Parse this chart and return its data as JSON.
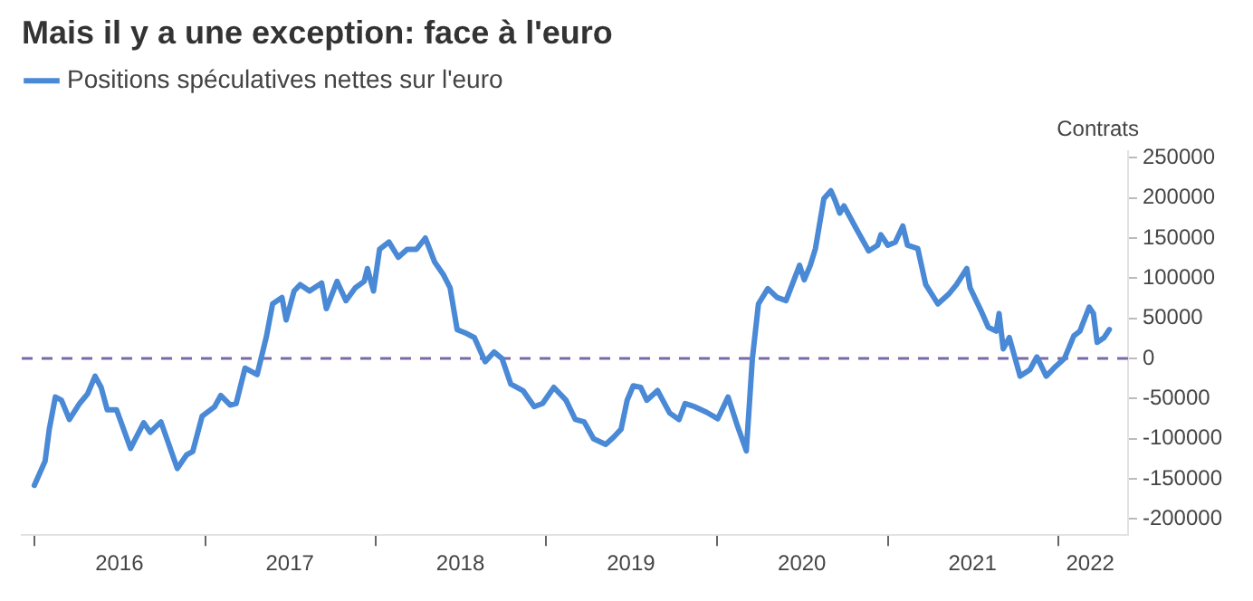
{
  "chart_data": {
    "type": "line",
    "title": "Mais il y a une exception: face à l'euro",
    "ylabel": "Contrats",
    "x": [
      "2016-01-01",
      "2016-01-24",
      "2016-02-02",
      "2016-02-15",
      "2016-02-28",
      "2016-03-16",
      "2016-04-07",
      "2016-04-24",
      "2016-05-10",
      "2016-05-23",
      "2016-06-05",
      "2016-06-25",
      "2016-07-25",
      "2016-08-22",
      "2016-09-05",
      "2016-09-28",
      "2016-11-02",
      "2016-11-22",
      "2016-12-05",
      "2016-12-25",
      "2017-01-21",
      "2017-02-03",
      "2017-02-23",
      "2017-03-08",
      "2017-03-27",
      "2017-04-22",
      "2017-05-12",
      "2017-05-25",
      "2017-06-14",
      "2017-06-23",
      "2017-07-10",
      "2017-07-23",
      "2017-08-12",
      "2017-09-07",
      "2017-09-17",
      "2017-10-10",
      "2017-10-29",
      "2017-11-18",
      "2017-12-07",
      "2017-12-14",
      "2017-12-27",
      "2018-01-09",
      "2018-01-29",
      "2018-02-18",
      "2018-03-09",
      "2018-03-29",
      "2018-04-17",
      "2018-05-07",
      "2018-05-26",
      "2018-06-09",
      "2018-06-24",
      "2018-07-11",
      "2018-07-31",
      "2018-08-23",
      "2018-09-11",
      "2018-09-28",
      "2018-10-17",
      "2018-11-12",
      "2018-12-06",
      "2018-12-24",
      "2019-01-17",
      "2019-02-12",
      "2019-03-04",
      "2019-03-23",
      "2019-04-12",
      "2019-05-08",
      "2019-05-25",
      "2019-06-10",
      "2019-06-23",
      "2019-07-06",
      "2019-07-22",
      "2019-08-04",
      "2019-08-27",
      "2019-09-22",
      "2019-10-12",
      "2019-10-25",
      "2019-11-14",
      "2019-12-10",
      "2020-01-03",
      "2020-01-25",
      "2020-02-14",
      "2020-03-04",
      "2020-03-17",
      "2020-03-30",
      "2020-04-19",
      "2020-05-09",
      "2020-05-28",
      "2020-06-26",
      "2020-07-06",
      "2020-07-19",
      "2020-07-30",
      "2020-08-17",
      "2020-09-01",
      "2020-09-10",
      "2020-09-20",
      "2020-09-29",
      "2020-10-26",
      "2020-11-21",
      "2020-12-10",
      "2020-12-17",
      "2021-01-01",
      "2021-01-17",
      "2021-02-02",
      "2021-02-12",
      "2021-03-06",
      "2021-03-23",
      "2021-04-18",
      "2021-05-11",
      "2021-05-28",
      "2021-06-19",
      "2021-06-26",
      "2021-07-19",
      "2021-08-04",
      "2021-08-21",
      "2021-08-27",
      "2021-09-05",
      "2021-09-18",
      "2021-10-11",
      "2021-11-01",
      "2021-11-16",
      "2021-12-06",
      "2021-12-26",
      "2022-01-14",
      "2022-02-03",
      "2022-02-16",
      "2022-03-08",
      "2022-03-17",
      "2022-03-25",
      "2022-04-09",
      "2022-04-20"
    ],
    "series": [
      {
        "name": "Positions spéculatives nettes sur l'euro",
        "color": "#4a89d6",
        "values": [
          -158000,
          -128000,
          -88000,
          -48000,
          -52000,
          -76000,
          -56000,
          -44000,
          -22000,
          -36000,
          -64000,
          -64000,
          -112000,
          -80000,
          -92000,
          -79000,
          -137000,
          -120000,
          -116000,
          -72000,
          -60000,
          -46000,
          -58000,
          -56000,
          -12000,
          -20000,
          28000,
          68000,
          76000,
          48000,
          84000,
          92000,
          84000,
          94000,
          62000,
          96000,
          72000,
          88000,
          96000,
          112000,
          84000,
          136000,
          145000,
          126000,
          136000,
          136000,
          150000,
          120000,
          104000,
          88000,
          36000,
          32000,
          26000,
          -4000,
          8000,
          0,
          -32000,
          -40000,
          -60000,
          -56000,
          -36000,
          -52000,
          -76000,
          -79000,
          -100000,
          -107000,
          -98000,
          -88000,
          -52000,
          -34000,
          -36000,
          -52000,
          -40000,
          -68000,
          -76000,
          -56000,
          -60000,
          -67000,
          -75000,
          -48000,
          -84000,
          -115000,
          0,
          68000,
          87000,
          76000,
          72000,
          116000,
          98000,
          116000,
          137000,
          199000,
          209000,
          197000,
          181000,
          190000,
          161000,
          134000,
          141000,
          154000,
          141000,
          145000,
          165000,
          141000,
          137000,
          92000,
          68000,
          80000,
          92000,
          112000,
          88000,
          60000,
          39000,
          34000,
          56000,
          12000,
          26000,
          -22000,
          -14000,
          2000,
          -22000,
          -10000,
          0,
          28000,
          34000,
          64000,
          56000,
          20000,
          26000,
          36000
        ]
      }
    ],
    "xlim": [
      "2015-12-05",
      "2022-05-30"
    ],
    "xticks": [
      {
        "value": "2016-01-01",
        "label": null
      },
      {
        "value": "2016-07-01",
        "label": "2016"
      },
      {
        "value": "2017-01-01",
        "label": null
      },
      {
        "value": "2017-07-01",
        "label": "2017"
      },
      {
        "value": "2018-01-01",
        "label": null
      },
      {
        "value": "2018-07-01",
        "label": "2018"
      },
      {
        "value": "2019-01-01",
        "label": null
      },
      {
        "value": "2019-07-01",
        "label": "2019"
      },
      {
        "value": "2020-01-01",
        "label": null
      },
      {
        "value": "2020-07-01",
        "label": "2020"
      },
      {
        "value": "2021-01-01",
        "label": null
      },
      {
        "value": "2021-07-01",
        "label": "2021"
      },
      {
        "value": "2022-01-01",
        "label": null
      },
      {
        "value": "2022-03-10",
        "label": "2022"
      }
    ],
    "ylim": [
      -220000,
      258000
    ],
    "yticks": [
      -200000,
      -150000,
      -100000,
      -50000,
      0,
      50000,
      100000,
      150000,
      200000,
      250000
    ],
    "ref_lines": [
      {
        "axis": "y",
        "value": 0,
        "color": "#7b68a6",
        "line_style": "dashed"
      }
    ],
    "legend": "top left",
    "grid": false,
    "marker": "none",
    "line_style": "solid"
  }
}
